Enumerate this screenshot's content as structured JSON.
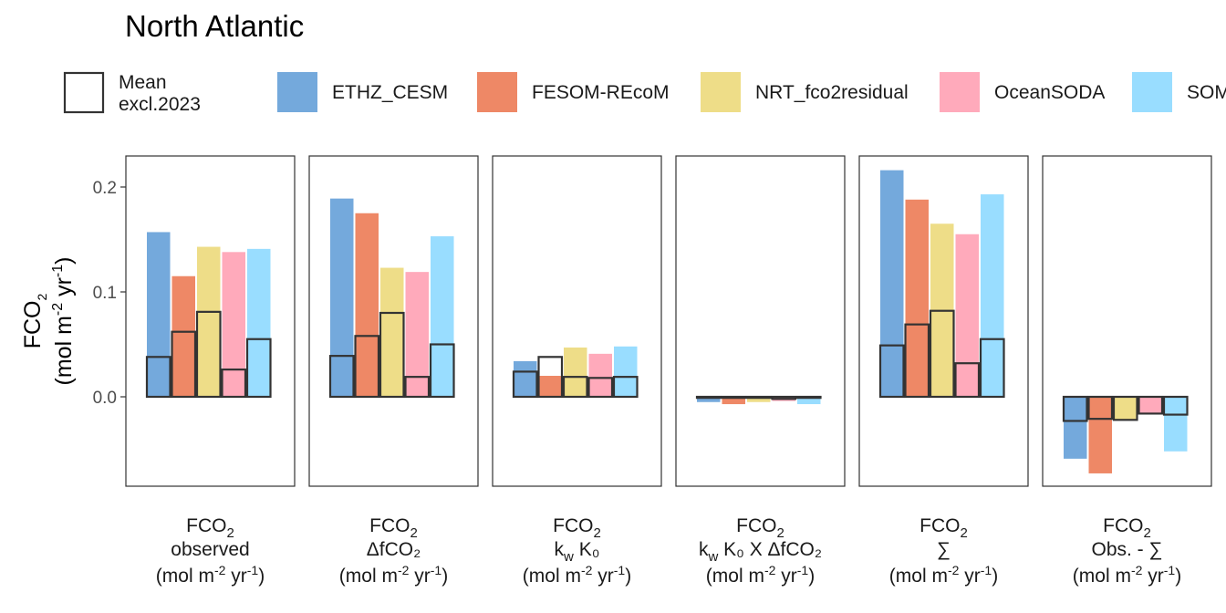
{
  "chart_data": {
    "type": "bar",
    "title": "North Atlantic",
    "ylabel_main": "FCO",
    "ylabel_main_sub": "2",
    "ylabel_unit": "(mol m",
    "ylabel_unit_sup1": "-2",
    "ylabel_unit_mid": " yr",
    "ylabel_unit_sup2": "-1",
    "ylabel_unit_end": ")",
    "ylim": [
      -0.085,
      0.23
    ],
    "yticks": [
      0.0,
      0.1,
      0.2
    ],
    "ytick_labels": [
      "0.0",
      "0.1",
      "0.2"
    ],
    "grid": false,
    "legend_placement": "top",
    "legend": {
      "mean_label_line1": "Mean",
      "mean_label_line2": "excl.2023",
      "entries": [
        {
          "name": "ETHZ_CESM",
          "color": "#74a9dc"
        },
        {
          "name": "FESOM-REcoM",
          "color": "#ee8866"
        },
        {
          "name": "NRT_fco2residual",
          "color": "#eedd88"
        },
        {
          "name": "OceanSODA",
          "color": "#ffaabb"
        },
        {
          "name": "SOM",
          "color": "#99ddff"
        }
      ]
    },
    "panels": [
      {
        "line1": "FCO",
        "line1_sub": "2",
        "line2": "observed",
        "unit": "(mol m",
        "unit_sup1": "-2",
        "unit_mid": " yr",
        "unit_sup2": "-1",
        "unit_end": ")",
        "values_2023": [
          0.157,
          0.115,
          0.143,
          0.138,
          0.141
        ],
        "values_mean": [
          0.038,
          0.062,
          0.081,
          0.026,
          0.055
        ]
      },
      {
        "line1": "FCO",
        "line1_sub": "2",
        "line2": "ΔfCO₂",
        "unit": "(mol m",
        "unit_sup1": "-2",
        "unit_mid": " yr",
        "unit_sup2": "-1",
        "unit_end": ")",
        "values_2023": [
          0.189,
          0.175,
          0.123,
          0.119,
          0.153
        ],
        "values_mean": [
          0.039,
          0.058,
          0.08,
          0.019,
          0.05
        ]
      },
      {
        "line1": "FCO",
        "line1_sub": "2",
        "line2": "k_w K₀",
        "unit": "(mol m",
        "unit_sup1": "-2",
        "unit_mid": " yr",
        "unit_sup2": "-1",
        "unit_end": ")",
        "values_2023": [
          0.034,
          0.02,
          0.047,
          0.041,
          0.048
        ],
        "values_mean": [
          0.024,
          0.038,
          0.019,
          0.018,
          0.019
        ]
      },
      {
        "line1": "FCO",
        "line1_sub": "2",
        "line2": "k_w K₀ X ΔfCO₂",
        "unit": "(mol m",
        "unit_sup1": "-2",
        "unit_mid": " yr",
        "unit_sup2": "-1",
        "unit_end": ")",
        "values_2023": [
          -0.005,
          -0.007,
          -0.005,
          -0.004,
          -0.007
        ],
        "values_mean": [
          -0.001,
          -0.001,
          -0.001,
          -0.002,
          -0.001
        ]
      },
      {
        "line1": "FCO",
        "line1_sub": "2",
        "line2": "∑",
        "unit": "(mol m",
        "unit_sup1": "-2",
        "unit_mid": " yr",
        "unit_sup2": "-1",
        "unit_end": ")",
        "values_2023": [
          0.216,
          0.188,
          0.165,
          0.155,
          0.193
        ],
        "values_mean": [
          0.049,
          0.069,
          0.082,
          0.032,
          0.055
        ]
      },
      {
        "line1": "FCO",
        "line1_sub": "2",
        "line2": "Obs. - ∑",
        "unit": "(mol m",
        "unit_sup1": "-2",
        "unit_mid": " yr",
        "unit_sup2": "-1",
        "unit_end": ")",
        "values_2023": [
          -0.059,
          -0.073,
          -0.022,
          -0.016,
          -0.052
        ],
        "values_mean": [
          -0.023,
          -0.021,
          -0.022,
          -0.016,
          -0.017
        ]
      }
    ]
  }
}
